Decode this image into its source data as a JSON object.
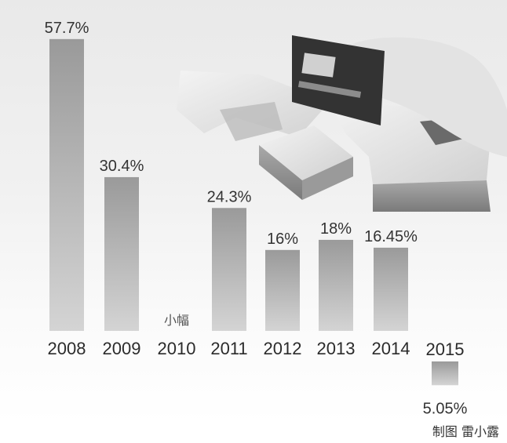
{
  "chart_data": {
    "type": "bar",
    "categories": [
      "2008",
      "2009",
      "2010",
      "2011",
      "2012",
      "2013",
      "2014",
      "2015"
    ],
    "values": [
      57.7,
      30.4,
      null,
      24.3,
      16,
      18,
      16.45,
      5.05
    ],
    "value_labels": [
      "57.7%",
      "30.4%",
      "",
      "24.3%",
      "16%",
      "18%",
      "16.45%",
      "5.05%"
    ],
    "notes": {
      "2010": "小幅"
    },
    "bar_color": "#8f8f8f",
    "grid": false,
    "legend": "none"
  },
  "credit": "制图 雷小露"
}
